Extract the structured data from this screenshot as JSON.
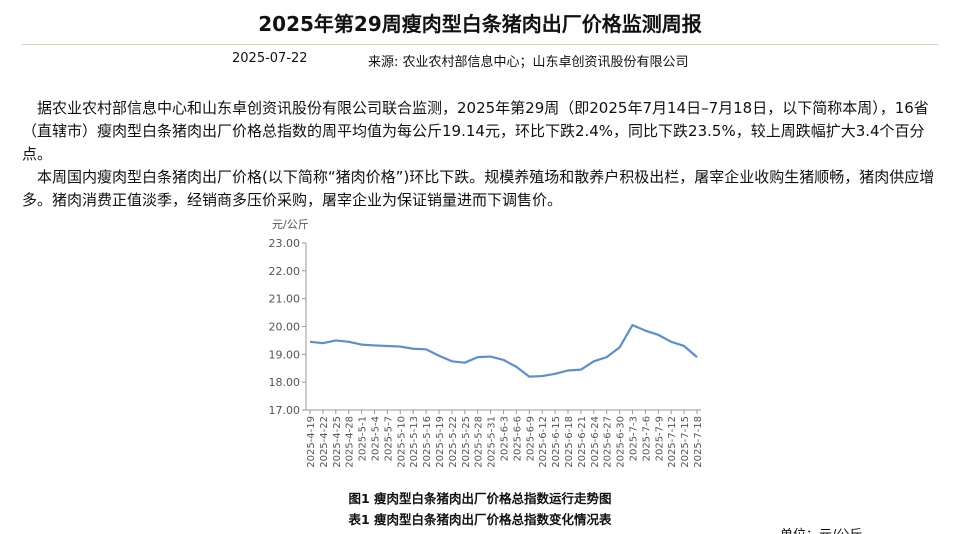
{
  "header": {
    "title": "2025年第29周瘦肉型白条猪肉出厂价格监测周报",
    "date": "2025-07-22",
    "source": "来源: 农业农村部信息中心；山东卓创资讯股份有限公司"
  },
  "paragraphs": [
    "据农业农村部信息中心和山东卓创资讯股份有限公司联合监测，2025年第29周（即2025年7月14日–7月18日，以下简称本周），16省（直辖市）瘦肉型白条猪肉出厂价格总指数的周平均值为每公斤19.14元，环比下跌2.4%，同比下跌23.5%，较上周跌幅扩大3.4个百分点。",
    "本周国内瘦肉型白条猪肉出厂价格(以下简称“猪肉价格”)环比下跌。规模养殖场和散养户积极出栏，屠宰企业收购生猪顺畅，猪肉供应增多。猪肉消费正值淡季，经销商多压价采购，屠宰企业为保证销量进而下调售价。"
  ],
  "chart_data": {
    "type": "line",
    "y_label": "元/公斤",
    "color": "#5b8fd0",
    "categories": [
      "2025-4-19",
      "2025-4-22",
      "2025-4-25",
      "2025-4-28",
      "2025-5-1",
      "2025-5-4",
      "2025-5-7",
      "2025-5-10",
      "2025-5-13",
      "2025-5-16",
      "2025-5-19",
      "2025-5-22",
      "2025-5-25",
      "2025-5-28",
      "2025-5-31",
      "2025-6-3",
      "2025-6-6",
      "2025-6-9",
      "2025-6-12",
      "2025-6-15",
      "2025-6-18",
      "2025-6-21",
      "2025-6-24",
      "2025-6-27",
      "2025-6-30",
      "2025-7-3",
      "2025-7-6",
      "2025-7-9",
      "2025-7-12",
      "2025-7-15",
      "2025-7-18"
    ],
    "values": [
      19.45,
      19.4,
      19.5,
      19.45,
      19.35,
      19.32,
      19.3,
      19.28,
      19.2,
      19.18,
      18.95,
      18.75,
      18.7,
      18.9,
      18.92,
      18.8,
      18.55,
      18.2,
      18.22,
      18.3,
      18.42,
      18.45,
      18.75,
      18.9,
      19.25,
      20.05,
      19.85,
      19.7,
      19.45,
      19.3,
      18.9
    ],
    "ylim": [
      17,
      23
    ],
    "yticks": [
      {
        "value": 17,
        "label": "17.00"
      },
      {
        "value": 18,
        "label": "18.00"
      },
      {
        "value": 19,
        "label": "19.00"
      },
      {
        "value": 20,
        "label": "20.00"
      },
      {
        "value": 21,
        "label": "21.00"
      },
      {
        "value": 22,
        "label": "22.00"
      },
      {
        "value": 23,
        "label": "23.00"
      }
    ]
  },
  "captions": [
    "图1 瘦肉型白条猪肉出厂价格总指数运行走势图",
    "表1 瘦肉型白条猪肉出厂价格总指数变化情况表"
  ],
  "unit_note": "单位：元/公斤"
}
